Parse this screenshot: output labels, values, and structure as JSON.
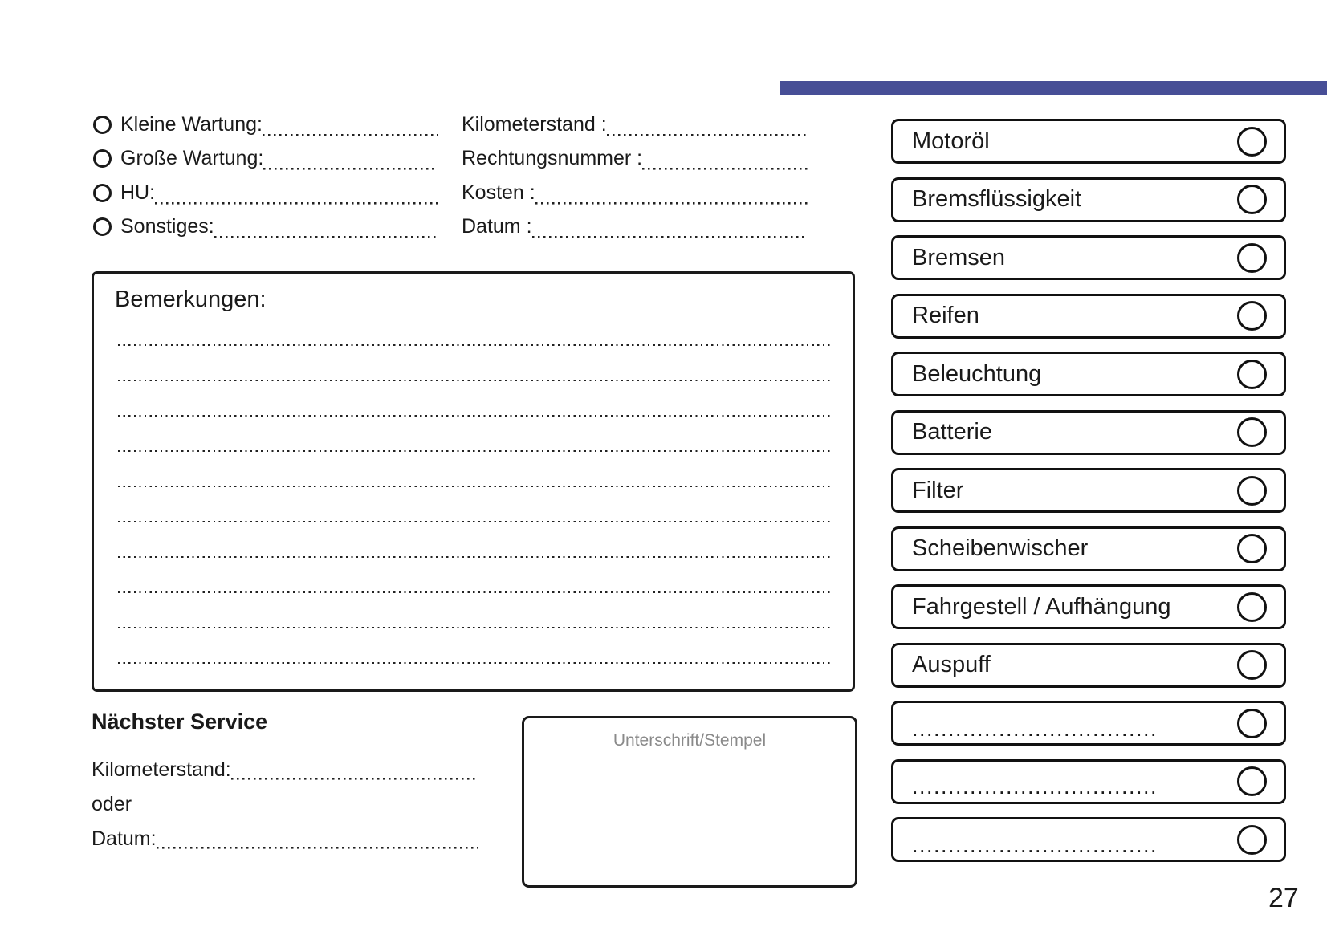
{
  "page": {
    "number": "27"
  },
  "colors": {
    "accent_bar": "#474E96",
    "ink": "#1a1a1a",
    "muted_text": "#8a8a8a"
  },
  "service_type": {
    "items": [
      {
        "label": "Kleine Wartung:"
      },
      {
        "label": "Große Wartung:"
      },
      {
        "label": "HU:"
      },
      {
        "label": "Sonstiges:"
      }
    ]
  },
  "invoice_fields": {
    "items": [
      {
        "label": "Kilometerstand :"
      },
      {
        "label": "Rechtungsnummer :"
      },
      {
        "label": "Kosten :"
      },
      {
        "label": "Datum :"
      }
    ]
  },
  "remarks": {
    "title": "Bemerkungen:",
    "lines": [
      "",
      "",
      "",
      "",
      "",
      "",
      "",
      "",
      "",
      ""
    ]
  },
  "next_service": {
    "title": "Nächster Service",
    "fields": [
      {
        "label": "Kilometerstand:",
        "plain": false
      },
      {
        "label": "oder",
        "plain": true
      },
      {
        "label": "Datum:",
        "plain": false
      }
    ]
  },
  "signature": {
    "label": "Unterschrift/Stempel"
  },
  "checklist": {
    "items": [
      {
        "label": "Motoröl",
        "blank": false
      },
      {
        "label": "Bremsflüssigkeit",
        "blank": false
      },
      {
        "label": "Bremsen",
        "blank": false
      },
      {
        "label": "Reifen",
        "blank": false
      },
      {
        "label": "Beleuchtung",
        "blank": false
      },
      {
        "label": "Batterie",
        "blank": false
      },
      {
        "label": "Filter",
        "blank": false
      },
      {
        "label": "Scheibenwischer",
        "blank": false
      },
      {
        "label": "Fahrgestell / Aufhängung",
        "blank": false
      },
      {
        "label": "Auspuff",
        "blank": false
      },
      {
        "label": "..................................",
        "blank": true
      },
      {
        "label": "..................................",
        "blank": true
      },
      {
        "label": "..................................",
        "blank": true
      }
    ]
  }
}
